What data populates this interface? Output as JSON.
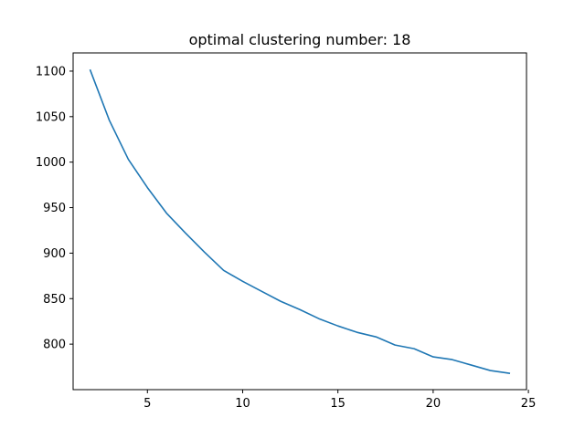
{
  "chart_data": {
    "type": "line",
    "title": "optimal clustering number: 18",
    "xlabel": "",
    "ylabel": "",
    "xlim": [
      1.1,
      24.9
    ],
    "ylim": [
      750,
      1120
    ],
    "xticks": [
      5,
      10,
      15,
      20,
      25
    ],
    "yticks": [
      800,
      850,
      900,
      950,
      1000,
      1050,
      1100
    ],
    "grid": false,
    "series": [
      {
        "color": "#1f77b4",
        "x": [
          2,
          3,
          4,
          5,
          6,
          7,
          8,
          9,
          10,
          11,
          12,
          13,
          14,
          15,
          16,
          17,
          18,
          19,
          20,
          21,
          22,
          23,
          24
        ],
        "y": [
          1101,
          1046,
          1003,
          972,
          944,
          922,
          901,
          881,
          869,
          858,
          847,
          838,
          828,
          820,
          813,
          808,
          799,
          795,
          786,
          783,
          777,
          771,
          768
        ]
      }
    ]
  }
}
